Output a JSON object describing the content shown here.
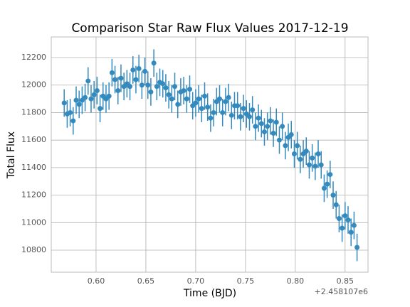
{
  "chart_data": {
    "type": "scatter",
    "title": "Comparison Star Raw Flux Values 2017-12-19",
    "x_label": "Time (BJD)",
    "y_label": "Total Flux",
    "x_offset_label": "+2.458107e6",
    "xlim": [
      0.555,
      0.873
    ],
    "ylim": [
      10640,
      12350
    ],
    "xticks": [
      {
        "value": 0.6,
        "label": "0.60"
      },
      0.65,
      {
        "value": 0.7,
        "label": "0.70"
      },
      0.75,
      {
        "value": 0.8,
        "label": "0.80"
      },
      0.85
    ],
    "yticks": [
      10800,
      11000,
      11200,
      11400,
      11600,
      11800,
      12000,
      12200
    ],
    "grid": true,
    "yerr": 100,
    "series": [
      {
        "color": "#348abd",
        "x": [
          0.568,
          0.571,
          0.574,
          0.577,
          0.58,
          0.583,
          0.586,
          0.589,
          0.592,
          0.595,
          0.598,
          0.601,
          0.604,
          0.607,
          0.61,
          0.613,
          0.616,
          0.619,
          0.622,
          0.625,
          0.628,
          0.631,
          0.634,
          0.637,
          0.64,
          0.643,
          0.646,
          0.649,
          0.652,
          0.655,
          0.658,
          0.661,
          0.664,
          0.667,
          0.67,
          0.673,
          0.676,
          0.679,
          0.682,
          0.685,
          0.688,
          0.691,
          0.694,
          0.697,
          0.7,
          0.703,
          0.706,
          0.709,
          0.712,
          0.715,
          0.718,
          0.721,
          0.724,
          0.727,
          0.73,
          0.733,
          0.736,
          0.739,
          0.742,
          0.745,
          0.748,
          0.751,
          0.754,
          0.757,
          0.76,
          0.763,
          0.766,
          0.769,
          0.772,
          0.775,
          0.778,
          0.781,
          0.784,
          0.787,
          0.79,
          0.793,
          0.796,
          0.799,
          0.802,
          0.805,
          0.808,
          0.811,
          0.814,
          0.817,
          0.82,
          0.823,
          0.826,
          0.829,
          0.832,
          0.835,
          0.838,
          0.841,
          0.844,
          0.847,
          0.85,
          0.853,
          0.856,
          0.859,
          0.862
        ],
        "values": [
          11870,
          11790,
          11800,
          11740,
          11890,
          11860,
          11890,
          11910,
          12030,
          11900,
          11930,
          11960,
          11830,
          11920,
          11900,
          11920,
          12090,
          12040,
          11960,
          12050,
          11990,
          12010,
          11990,
          12110,
          12040,
          12120,
          12000,
          12100,
          12000,
          11950,
          12160,
          11990,
          12020,
          12010,
          11980,
          11930,
          11900,
          11990,
          11860,
          11950,
          11960,
          11900,
          11970,
          11850,
          11870,
          11900,
          11830,
          11920,
          11840,
          11760,
          11800,
          11880,
          11900,
          11800,
          11880,
          11910,
          11780,
          11850,
          11850,
          11770,
          11830,
          11790,
          11770,
          11820,
          11700,
          11760,
          11720,
          11660,
          11700,
          11740,
          11650,
          11730,
          11600,
          11700,
          11560,
          11620,
          11640,
          11500,
          11560,
          11460,
          11500,
          11520,
          11420,
          11470,
          11410,
          11500,
          11420,
          11250,
          11280,
          11350,
          11200,
          11130,
          11030,
          10960,
          11050,
          11020,
          10930,
          10980,
          10820
        ]
      }
    ]
  }
}
